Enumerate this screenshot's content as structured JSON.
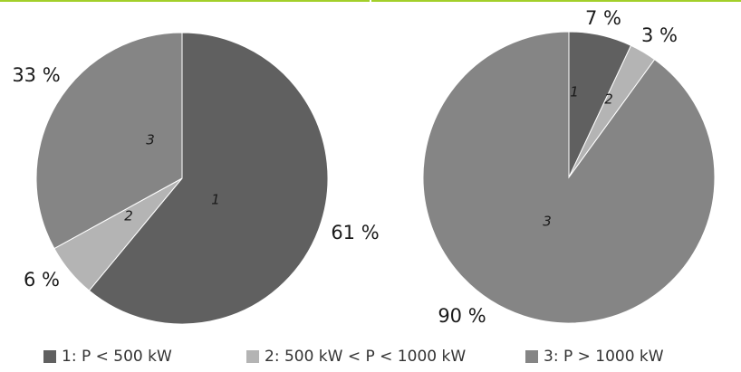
{
  "colors": {
    "series1": "#606060",
    "series2": "#b4b4b4",
    "series3": "#858585",
    "top_line": "#a3cf2a",
    "text": "#1a1a1a"
  },
  "chart_data": [
    {
      "type": "pie",
      "slices": [
        {
          "id": "1",
          "value": 61,
          "percent_label": "61 %"
        },
        {
          "id": "2",
          "value": 6,
          "percent_label": "6 %"
        },
        {
          "id": "3",
          "value": 33,
          "percent_label": "33 %"
        }
      ]
    },
    {
      "type": "pie",
      "slices": [
        {
          "id": "1",
          "value": 7,
          "percent_label": "7 %"
        },
        {
          "id": "2",
          "value": 3,
          "percent_label": "3 %"
        },
        {
          "id": "3",
          "value": 90,
          "percent_label": "90 %"
        }
      ]
    }
  ],
  "legend": {
    "items": [
      {
        "label": "1: P < 500 kW"
      },
      {
        "label": "2: 500 kW < P < 1000 kW"
      },
      {
        "label": "3: P > 1000 kW"
      }
    ]
  }
}
